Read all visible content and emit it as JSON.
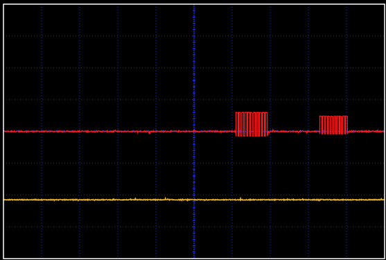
{
  "chart_data": {
    "type": "line",
    "title": "",
    "xlabel": "",
    "ylabel": "",
    "grid": true,
    "grid_divisions": {
      "x": 10,
      "y": 8
    },
    "xlim": [
      0,
      10
    ],
    "ylim": [
      -4,
      4
    ],
    "colors": {
      "background": "#000000",
      "frame": "#ffffff",
      "grid_dots": "#1a2f9a",
      "center_axis": "#1e2cff",
      "channel_red": "#ff1a1a",
      "channel_yellow": "#f0b429"
    },
    "series": [
      {
        "channel": "red",
        "baseline": 0.0,
        "noise_amplitude": 0.02,
        "bursts": [
          {
            "x_start": 6.1,
            "x_end": 6.95,
            "low": -0.15,
            "high": 0.6,
            "pulses": 11
          },
          {
            "x_start": 8.3,
            "x_end": 9.05,
            "low": -0.08,
            "high": 0.48,
            "pulses": 10
          }
        ]
      },
      {
        "channel": "yellow",
        "baseline": -2.15,
        "noise_amplitude": 0.012,
        "bursts": []
      }
    ]
  }
}
